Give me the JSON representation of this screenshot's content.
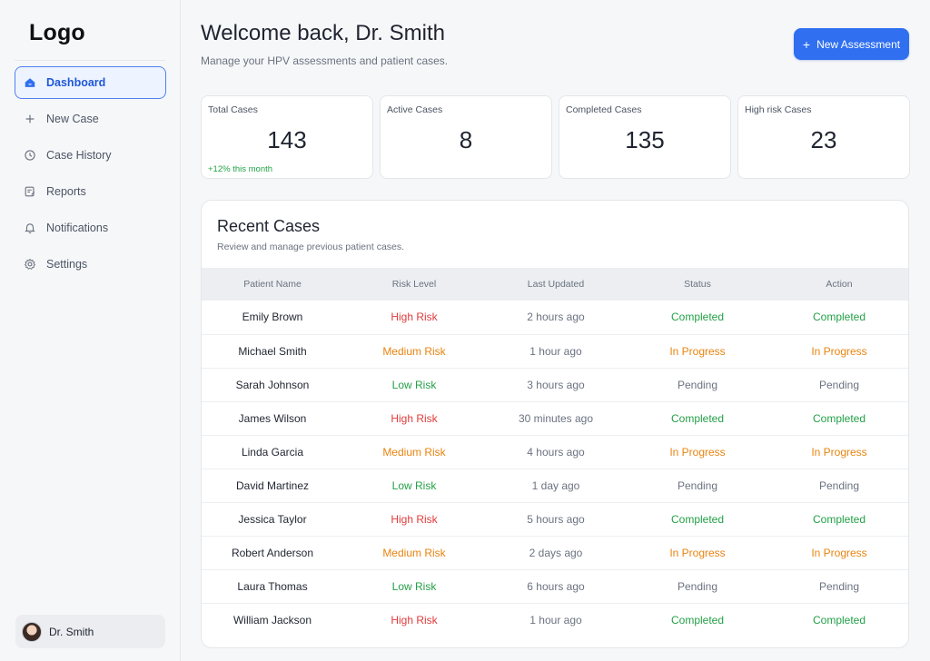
{
  "sidebar": {
    "logo": "Logo",
    "items": [
      {
        "label": "Dashboard",
        "icon": "home-icon",
        "active": true
      },
      {
        "label": "New Case",
        "icon": "plus-icon",
        "active": false
      },
      {
        "label": "Case History",
        "icon": "history-icon",
        "active": false
      },
      {
        "label": "Reports",
        "icon": "report-icon",
        "active": false
      },
      {
        "label": "Notifications",
        "icon": "bell-icon",
        "active": false
      },
      {
        "label": "Settings",
        "icon": "gear-icon",
        "active": false
      }
    ],
    "user": {
      "name": "Dr. Smith"
    }
  },
  "header": {
    "title": "Welcome back, Dr. Smith",
    "subtitle": "Manage your HPV assessments and patient cases.",
    "new_button": "New Assessment"
  },
  "stats": [
    {
      "label": "Total Cases",
      "value": "143",
      "trend": "+12% this month"
    },
    {
      "label": "Active Cases",
      "value": "8",
      "trend": ""
    },
    {
      "label": "Completed Cases",
      "value": "135",
      "trend": ""
    },
    {
      "label": "High risk Cases",
      "value": "23",
      "trend": ""
    }
  ],
  "recent_cases": {
    "title": "Recent Cases",
    "subtitle": "Review and manage previous patient cases.",
    "columns": [
      "Patient Name",
      "Risk Level",
      "Last Updated",
      "Status",
      "Action"
    ],
    "rows": [
      {
        "name": "Emily Brown",
        "risk": "High Risk",
        "updated": "2 hours ago",
        "status": "Completed",
        "action": "Completed"
      },
      {
        "name": "Michael Smith",
        "risk": "Medium Risk",
        "updated": "1 hour ago",
        "status": "In Progress",
        "action": "In Progress"
      },
      {
        "name": "Sarah Johnson",
        "risk": "Low Risk",
        "updated": "3 hours ago",
        "status": "Pending",
        "action": "Pending"
      },
      {
        "name": "James Wilson",
        "risk": "High Risk",
        "updated": "30 minutes ago",
        "status": "Completed",
        "action": "Completed"
      },
      {
        "name": "Linda Garcia",
        "risk": "Medium Risk",
        "updated": "4 hours ago",
        "status": "In Progress",
        "action": "In Progress"
      },
      {
        "name": "David Martinez",
        "risk": "Low Risk",
        "updated": "1 day ago",
        "status": "Pending",
        "action": "Pending"
      },
      {
        "name": "Jessica Taylor",
        "risk": "High Risk",
        "updated": "5 hours ago",
        "status": "Completed",
        "action": "Completed"
      },
      {
        "name": "Robert Anderson",
        "risk": "Medium Risk",
        "updated": "2 days ago",
        "status": "In Progress",
        "action": "In Progress"
      },
      {
        "name": "Laura Thomas",
        "risk": "Low Risk",
        "updated": "6 hours ago",
        "status": "Pending",
        "action": "Pending"
      },
      {
        "name": "William Jackson",
        "risk": "High Risk",
        "updated": "1 hour ago",
        "status": "Completed",
        "action": "Completed"
      }
    ]
  },
  "colors": {
    "accent": "#2f6ff0",
    "high_risk": "#e23b3b",
    "medium_risk": "#e88410",
    "low_risk": "#23a047"
  }
}
